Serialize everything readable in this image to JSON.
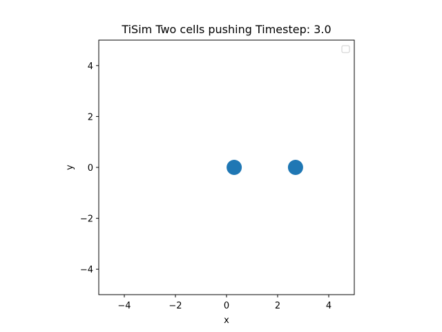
{
  "chart_data": {
    "type": "scatter",
    "title": "TiSim Two cells pushing Timestep: 3.0",
    "xlabel": "x",
    "ylabel": "y",
    "xlim": [
      -5,
      5
    ],
    "ylim": [
      -5,
      5
    ],
    "xticks": [
      -4,
      -2,
      0,
      2,
      4
    ],
    "yticks": [
      -4,
      -2,
      0,
      2,
      4
    ],
    "xtick_labels": [
      "−4",
      "−2",
      "0",
      "2",
      "4"
    ],
    "ytick_labels": [
      "−4",
      "−2",
      "0",
      "2",
      "4"
    ],
    "grid": false,
    "legend": {
      "placement": "top-right",
      "entries": []
    },
    "series": [
      {
        "x": [
          0.3,
          2.7
        ],
        "y": [
          0.0,
          0.0
        ],
        "color": "#1f77b4"
      }
    ]
  }
}
